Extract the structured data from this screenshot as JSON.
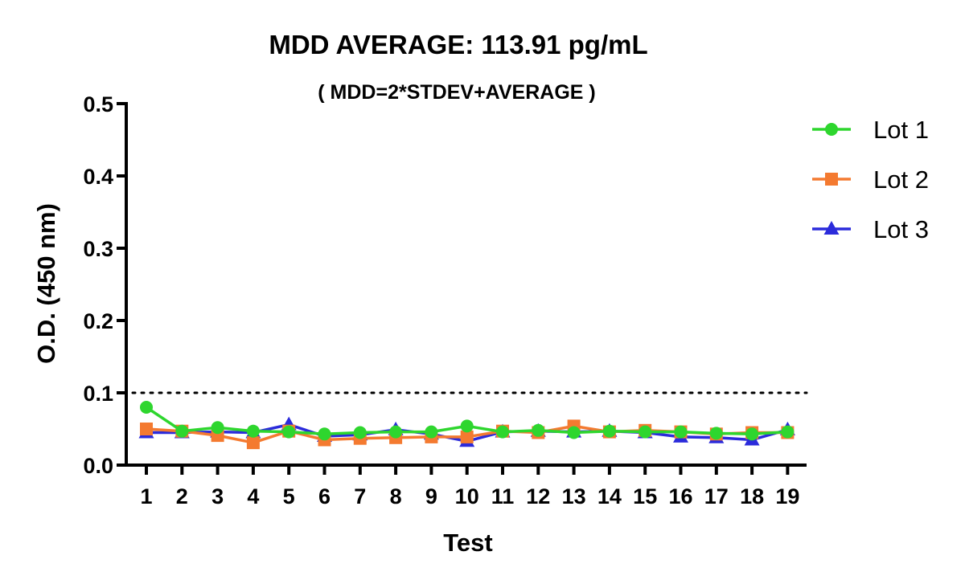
{
  "chart_data": {
    "type": "line",
    "title": "MDD AVERAGE:  113.91 pg/mL",
    "subtitle": "( MDD=2*STDEV+AVERAGE )",
    "xlabel": "Test",
    "ylabel": "O.D. (450 nm)",
    "categories": [
      "1",
      "2",
      "3",
      "4",
      "5",
      "6",
      "7",
      "8",
      "9",
      "10",
      "11",
      "12",
      "13",
      "14",
      "15",
      "16",
      "17",
      "18",
      "19"
    ],
    "yticks": [
      "0.0",
      "0.1",
      "0.2",
      "0.3",
      "0.4",
      "0.5"
    ],
    "ylim": [
      0,
      0.5
    ],
    "grid": false,
    "legend_position": "top-right",
    "reference_line": {
      "value": 0.1,
      "style": "dotted"
    },
    "series": [
      {
        "name": "Lot 1",
        "color": "#2ed62e",
        "marker": "circle",
        "values": [
          0.08,
          0.047,
          0.052,
          0.047,
          0.046,
          0.043,
          0.045,
          0.046,
          0.046,
          0.054,
          0.046,
          0.048,
          0.045,
          0.047,
          0.046,
          0.046,
          0.044,
          0.043,
          0.046
        ]
      },
      {
        "name": "Lot 2",
        "color": "#f47a30",
        "marker": "square",
        "values": [
          0.05,
          0.047,
          0.041,
          0.031,
          0.047,
          0.035,
          0.037,
          0.038,
          0.039,
          0.039,
          0.047,
          0.045,
          0.054,
          0.046,
          0.048,
          0.046,
          0.043,
          0.045,
          0.045
        ]
      },
      {
        "name": "Lot 3",
        "color": "#2b2bdb",
        "marker": "triangle",
        "values": [
          0.045,
          0.045,
          0.046,
          0.045,
          0.056,
          0.04,
          0.042,
          0.049,
          0.043,
          0.033,
          0.046,
          0.047,
          0.046,
          0.047,
          0.045,
          0.039,
          0.038,
          0.035,
          0.049
        ]
      }
    ]
  }
}
